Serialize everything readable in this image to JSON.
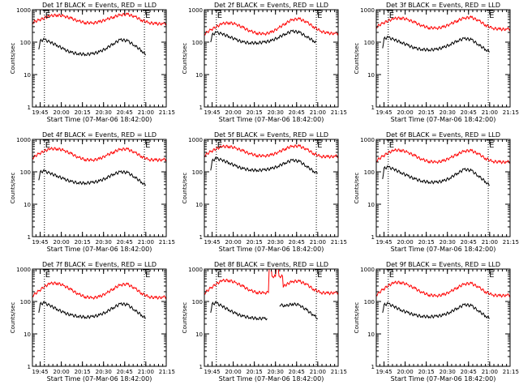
{
  "figure": {
    "xlabel": "Start Time (07-Mar-06 18:42:00)",
    "ylabel": "Counts/sec",
    "x_tick_labels": [
      "19:45",
      "20:00",
      "20:15",
      "20:30",
      "20:45",
      "21:00",
      "21:15"
    ],
    "y_tick_labels": [
      "1",
      "10",
      "100",
      "1000"
    ],
    "marker_label": "E",
    "colors": {
      "events": "#000000",
      "lld": "#ff0000",
      "axis": "#000000",
      "background": "#ffffff"
    }
  },
  "chart_data": [
    {
      "type": "line",
      "title": "Det 1f BLACK = Events, RED = LLD",
      "xlabel": "Start Time (07-Mar-06 18:42:00)",
      "ylabel": "Counts/sec",
      "xlim_min": [
        57.5,
        152.5
      ],
      "ylim": [
        1,
        1000
      ],
      "yscale": "log",
      "x_tick_values_min": [
        63,
        78,
        93,
        108,
        123,
        138,
        153
      ],
      "marker_lines_min": [
        66,
        137
      ],
      "series": [
        {
          "name": "LLD",
          "color": "#ff0000",
          "x": [
            57.5,
            62,
            66,
            70,
            75,
            80,
            85,
            90,
            95,
            100,
            105,
            110,
            115,
            120,
            125,
            130,
            135,
            140,
            145,
            150,
            152.5
          ],
          "y": [
            410,
            480,
            560,
            640,
            690,
            640,
            540,
            450,
            400,
            390,
            420,
            500,
            600,
            700,
            720,
            620,
            480,
            400,
            370,
            370,
            380
          ]
        },
        {
          "name": "Events",
          "color": "#000000",
          "x": [
            62,
            63,
            66,
            70,
            75,
            80,
            85,
            90,
            95,
            100,
            105,
            110,
            115,
            120,
            125,
            130,
            135,
            138
          ],
          "y": [
            60,
            110,
            120,
            100,
            80,
            60,
            48,
            44,
            42,
            44,
            50,
            65,
            90,
            120,
            110,
            80,
            55,
            40
          ]
        }
      ]
    },
    {
      "type": "line",
      "title": "Det 2f BLACK = Events, RED = LLD",
      "xlabel": "Start Time (07-Mar-06 18:42:00)",
      "ylabel": "Counts/sec",
      "xlim_min": [
        57.5,
        152.5
      ],
      "ylim": [
        1,
        1000
      ],
      "yscale": "log",
      "x_tick_values_min": [
        63,
        78,
        93,
        108,
        123,
        138,
        153
      ],
      "marker_lines_min": [
        66,
        137
      ],
      "series": [
        {
          "name": "LLD",
          "color": "#ff0000",
          "x": [
            57.5,
            62,
            66,
            70,
            75,
            80,
            85,
            90,
            95,
            100,
            105,
            110,
            115,
            120,
            125,
            130,
            135,
            140,
            145,
            150,
            152.5
          ],
          "y": [
            180,
            240,
            300,
            370,
            400,
            360,
            280,
            220,
            190,
            180,
            200,
            270,
            380,
            500,
            520,
            420,
            300,
            220,
            190,
            185,
            190
          ]
        },
        {
          "name": "Events",
          "color": "#000000",
          "x": [
            62,
            63,
            66,
            70,
            75,
            80,
            85,
            90,
            95,
            100,
            105,
            110,
            115,
            120,
            125,
            130,
            135,
            137
          ],
          "y": [
            100,
            170,
            200,
            180,
            150,
            120,
            100,
            95,
            95,
            100,
            110,
            140,
            180,
            220,
            200,
            150,
            110,
            100
          ]
        }
      ]
    },
    {
      "type": "line",
      "title": "Det 3f BLACK = Events, RED = LLD",
      "xlabel": "Start Time (07-Mar-06 18:42:00)",
      "ylabel": "Counts/sec",
      "xlim_min": [
        57.5,
        152.5
      ],
      "ylim": [
        1,
        1000
      ],
      "yscale": "log",
      "x_tick_values_min": [
        63,
        78,
        93,
        108,
        123,
        138,
        153
      ],
      "marker_lines_min": [
        66,
        137
      ],
      "series": [
        {
          "name": "LLD",
          "color": "#ff0000",
          "x": [
            57.5,
            62,
            66,
            70,
            75,
            80,
            85,
            90,
            95,
            100,
            105,
            110,
            115,
            120,
            125,
            130,
            135,
            140,
            145,
            150,
            152.5
          ],
          "y": [
            300,
            380,
            460,
            530,
            560,
            500,
            400,
            320,
            280,
            270,
            290,
            360,
            460,
            560,
            580,
            470,
            340,
            270,
            250,
            250,
            260
          ]
        },
        {
          "name": "Events",
          "color": "#000000",
          "x": [
            62,
            63,
            66,
            70,
            75,
            80,
            85,
            90,
            95,
            100,
            105,
            110,
            115,
            120,
            125,
            130,
            135,
            138
          ],
          "y": [
            65,
            130,
            140,
            120,
            100,
            80,
            65,
            60,
            58,
            60,
            68,
            85,
            110,
            130,
            120,
            85,
            60,
            50
          ]
        }
      ]
    },
    {
      "type": "line",
      "title": "Det 4f BLACK = Events, RED = LLD",
      "xlabel": "Start Time (07-Mar-06 18:42:00)",
      "ylabel": "Counts/sec",
      "xlim_min": [
        57.5,
        152.5
      ],
      "ylim": [
        1,
        1000
      ],
      "yscale": "log",
      "x_tick_values_min": [
        63,
        78,
        93,
        108,
        123,
        138,
        153
      ],
      "marker_lines_min": [
        66,
        137
      ],
      "series": [
        {
          "name": "LLD",
          "color": "#ff0000",
          "x": [
            57.5,
            62,
            66,
            70,
            75,
            80,
            85,
            90,
            95,
            100,
            105,
            110,
            115,
            120,
            125,
            130,
            135,
            140,
            145,
            150,
            152.5
          ],
          "y": [
            270,
            360,
            440,
            510,
            520,
            460,
            360,
            280,
            240,
            230,
            250,
            320,
            410,
            500,
            500,
            400,
            300,
            240,
            230,
            235,
            245
          ]
        },
        {
          "name": "Events",
          "color": "#000000",
          "x": [
            62,
            63,
            66,
            70,
            75,
            80,
            85,
            90,
            95,
            100,
            105,
            110,
            115,
            120,
            125,
            130,
            135,
            138
          ],
          "y": [
            55,
            100,
            105,
            90,
            75,
            60,
            50,
            46,
            45,
            47,
            52,
            65,
            85,
            100,
            95,
            70,
            48,
            38
          ]
        }
      ]
    },
    {
      "type": "line",
      "title": "Det 5f BLACK = Events, RED = LLD",
      "xlabel": "Start Time (07-Mar-06 18:42:00)",
      "ylabel": "Counts/sec",
      "xlim_min": [
        57.5,
        152.5
      ],
      "ylim": [
        1,
        1000
      ],
      "yscale": "log",
      "x_tick_values_min": [
        63,
        78,
        93,
        108,
        123,
        138,
        153
      ],
      "marker_lines_min": [
        66,
        137
      ],
      "series": [
        {
          "name": "LLD",
          "color": "#ff0000",
          "x": [
            57.5,
            62,
            66,
            70,
            75,
            80,
            85,
            90,
            95,
            100,
            105,
            110,
            115,
            120,
            125,
            130,
            135,
            140,
            145,
            150,
            152.5
          ],
          "y": [
            320,
            420,
            520,
            600,
            610,
            540,
            440,
            360,
            320,
            310,
            330,
            400,
            520,
            620,
            620,
            500,
            370,
            300,
            290,
            300,
            310
          ]
        },
        {
          "name": "Events",
          "color": "#000000",
          "x": [
            62,
            63,
            66,
            70,
            75,
            80,
            85,
            90,
            95,
            100,
            105,
            110,
            115,
            120,
            125,
            130,
            135,
            138
          ],
          "y": [
            110,
            220,
            260,
            230,
            190,
            150,
            125,
            115,
            112,
            115,
            125,
            150,
            190,
            230,
            210,
            150,
            105,
            90
          ]
        }
      ]
    },
    {
      "type": "line",
      "title": "Det 6f BLACK = Events, RED = LLD",
      "xlabel": "Start Time (07-Mar-06 18:42:00)",
      "ylabel": "Counts/sec",
      "xlim_min": [
        57.5,
        152.5
      ],
      "ylim": [
        1,
        1000
      ],
      "yscale": "log",
      "x_tick_values_min": [
        63,
        78,
        93,
        108,
        123,
        138,
        153
      ],
      "marker_lines_min": [
        66,
        137
      ],
      "series": [
        {
          "name": "LLD",
          "color": "#ff0000",
          "x": [
            57.5,
            62,
            66,
            70,
            75,
            80,
            85,
            90,
            95,
            100,
            105,
            110,
            115,
            120,
            125,
            130,
            135,
            140,
            145,
            150,
            152.5
          ],
          "y": [
            220,
            300,
            390,
            460,
            470,
            400,
            310,
            240,
            210,
            200,
            215,
            270,
            350,
            440,
            450,
            360,
            260,
            210,
            200,
            200,
            210
          ]
        },
        {
          "name": "Events",
          "color": "#000000",
          "x": [
            62,
            63,
            66,
            70,
            75,
            80,
            85,
            90,
            95,
            100,
            105,
            110,
            115,
            120,
            125,
            130,
            135,
            138
          ],
          "y": [
            60,
            130,
            140,
            120,
            95,
            75,
            60,
            52,
            48,
            48,
            52,
            65,
            90,
            120,
            110,
            75,
            50,
            38
          ]
        }
      ]
    },
    {
      "type": "line",
      "title": "Det 7f BLACK = Events, RED = LLD",
      "xlabel": "Start Time (07-Mar-06 18:42:00)",
      "ylabel": "Counts/sec",
      "xlim_min": [
        57.5,
        152.5
      ],
      "ylim": [
        1,
        1000
      ],
      "yscale": "log",
      "x_tick_values_min": [
        63,
        78,
        93,
        108,
        123,
        138,
        153
      ],
      "marker_lines_min": [
        66,
        137
      ],
      "series": [
        {
          "name": "LLD",
          "color": "#ff0000",
          "x": [
            57.5,
            62,
            66,
            70,
            75,
            80,
            85,
            90,
            95,
            100,
            105,
            110,
            115,
            120,
            125,
            130,
            135,
            140,
            145,
            150,
            152.5
          ],
          "y": [
            150,
            210,
            290,
            360,
            370,
            310,
            230,
            170,
            140,
            130,
            140,
            180,
            250,
            330,
            340,
            260,
            180,
            140,
            130,
            135,
            140
          ]
        },
        {
          "name": "Events",
          "color": "#000000",
          "x": [
            62,
            63,
            66,
            70,
            75,
            80,
            85,
            90,
            95,
            100,
            105,
            110,
            115,
            120,
            125,
            130,
            135,
            138
          ],
          "y": [
            45,
            85,
            90,
            75,
            58,
            45,
            38,
            35,
            33,
            34,
            38,
            48,
            65,
            85,
            80,
            55,
            38,
            30
          ]
        }
      ]
    },
    {
      "type": "line",
      "title": "Det 8f BLACK = Events, RED = LLD",
      "xlabel": "Start Time (07-Mar-06 18:42:00)",
      "ylabel": "Counts/sec",
      "xlim_min": [
        57.5,
        152.5
      ],
      "ylim": [
        1,
        1000
      ],
      "yscale": "log",
      "x_tick_values_min": [
        63,
        78,
        93,
        108,
        123,
        138,
        153
      ],
      "marker_lines_min": [
        66,
        137
      ],
      "series": [
        {
          "name": "LLD",
          "color": "#ff0000",
          "x": [
            57.5,
            62,
            66,
            70,
            75,
            80,
            85,
            90,
            95,
            100,
            103,
            103.5,
            105,
            105.5,
            108,
            108.5,
            110,
            110.5,
            113,
            113.5,
            115,
            120,
            125,
            130,
            135,
            140,
            145,
            150,
            152.5
          ],
          "y": [
            180,
            260,
            350,
            440,
            450,
            380,
            290,
            220,
            190,
            185,
            190,
            1000,
            1000,
            600,
            600,
            1000,
            1000,
            600,
            600,
            280,
            320,
            420,
            420,
            340,
            240,
            190,
            180,
            185,
            190
          ]
        },
        {
          "name": "Events",
          "color": "#000000",
          "x": [
            62,
            63,
            66,
            70,
            75,
            80,
            85,
            90,
            95,
            100,
            102
          ],
          "y": [
            45,
            85,
            90,
            72,
            55,
            42,
            35,
            32,
            30,
            30,
            30
          ]
        },
        {
          "name": "Events (after gap)",
          "color": "#000000",
          "x": [
            111,
            112,
            115,
            120,
            125,
            130,
            135,
            138
          ],
          "y": [
            70,
            78,
            72,
            85,
            78,
            55,
            38,
            30
          ]
        }
      ]
    },
    {
      "type": "line",
      "title": "Det 9f BLACK = Events, RED = LLD",
      "xlabel": "Start Time (07-Mar-06 18:42:00)",
      "ylabel": "Counts/sec",
      "xlim_min": [
        57.5,
        152.5
      ],
      "ylim": [
        1,
        1000
      ],
      "yscale": "log",
      "x_tick_values_min": [
        63,
        78,
        93,
        108,
        123,
        138,
        153
      ],
      "marker_lines_min": [
        66,
        137
      ],
      "series": [
        {
          "name": "LLD",
          "color": "#ff0000",
          "x": [
            57.5,
            62,
            66,
            70,
            75,
            80,
            85,
            90,
            95,
            100,
            105,
            110,
            115,
            120,
            125,
            130,
            135,
            140,
            145,
            150,
            152.5
          ],
          "y": [
            160,
            230,
            310,
            380,
            390,
            330,
            250,
            190,
            160,
            150,
            160,
            200,
            270,
            350,
            360,
            280,
            200,
            160,
            150,
            155,
            160
          ]
        },
        {
          "name": "Events",
          "color": "#000000",
          "x": [
            62,
            63,
            66,
            70,
            75,
            80,
            85,
            90,
            95,
            100,
            105,
            110,
            115,
            120,
            125,
            130,
            135,
            138
          ],
          "y": [
            45,
            80,
            85,
            70,
            55,
            45,
            38,
            35,
            34,
            35,
            38,
            47,
            62,
            80,
            75,
            52,
            36,
            30
          ]
        }
      ]
    }
  ]
}
